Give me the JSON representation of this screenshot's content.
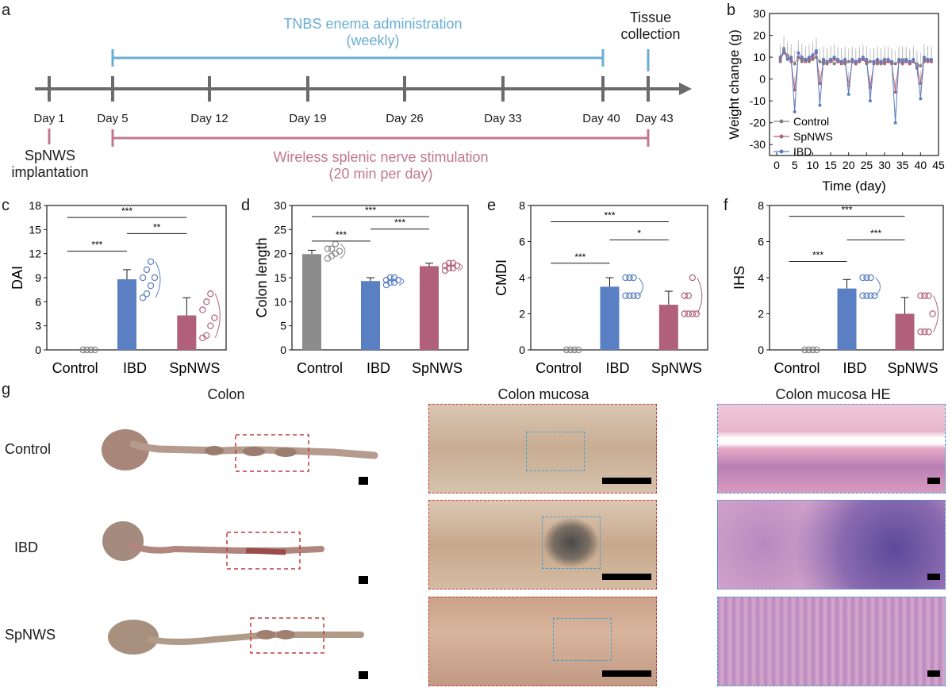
{
  "panel_letters": {
    "a": "a",
    "b": "b",
    "c": "c",
    "d": "d",
    "e": "e",
    "f": "f",
    "g": "g"
  },
  "timeline": {
    "days": [
      "Day 1",
      "Day 5",
      "Day 12",
      "Day 19",
      "Day 26",
      "Day 33",
      "Day 40",
      "Day 43"
    ],
    "tnbs_line1": "TNBS enema administration",
    "tnbs_line2": "(weekly)",
    "tissue_line1": "Tissue",
    "tissue_line2": "collection",
    "spnws_line1": "SpNWS",
    "spnws_line2": "implantation",
    "stim_line1": "Wireless splenic nerve stimulation",
    "stim_line2": "(20 min per day)",
    "colors": {
      "blue": "#6aaed3",
      "pink": "#c0788e",
      "axis": "#6b6b6b"
    }
  },
  "chart_data": [
    {
      "id": "b",
      "type": "line",
      "xlabel": "Time (day)",
      "ylabel": "Weight change (g)",
      "xlim": [
        -2,
        45
      ],
      "ylim": [
        -35,
        30
      ],
      "xticks": [
        0,
        5,
        10,
        15,
        20,
        25,
        30,
        35,
        40,
        45
      ],
      "yticks": [
        -30,
        -20,
        -10,
        0,
        10,
        20,
        30
      ],
      "legend_position": "bottom-left",
      "series": [
        {
          "name": "Control",
          "color": "#7f7f7f",
          "x": [
            1,
            2,
            3,
            4,
            5,
            6,
            7,
            8,
            9,
            10,
            11,
            12,
            13,
            14,
            15,
            16,
            17,
            18,
            19,
            20,
            21,
            22,
            23,
            24,
            25,
            26,
            27,
            28,
            29,
            30,
            31,
            32,
            33,
            34,
            35,
            36,
            37,
            38,
            39,
            40,
            41,
            42,
            43
          ],
          "y": [
            8,
            14,
            10,
            9,
            7,
            10,
            8,
            9,
            8,
            9,
            10,
            8,
            7,
            8,
            9,
            7,
            8,
            8,
            7,
            8,
            8,
            7,
            8,
            9,
            7,
            8,
            8,
            7,
            8,
            7,
            8,
            8,
            7,
            8,
            9,
            8,
            7,
            8,
            7,
            6,
            8,
            9,
            8
          ]
        },
        {
          "name": "SpNWS",
          "color": "#b0607a",
          "x": [
            1,
            2,
            3,
            4,
            5,
            6,
            7,
            8,
            9,
            10,
            11,
            12,
            13,
            14,
            15,
            16,
            17,
            18,
            19,
            20,
            21,
            22,
            23,
            24,
            25,
            26,
            27,
            28,
            29,
            30,
            31,
            32,
            33,
            34,
            35,
            36,
            37,
            38,
            39,
            40,
            41,
            42,
            43
          ],
          "y": [
            9,
            12,
            11,
            8,
            -5,
            10,
            9,
            8,
            9,
            10,
            12,
            -2,
            8,
            7,
            8,
            9,
            8,
            7,
            8,
            -3,
            8,
            7,
            8,
            9,
            8,
            -4,
            7,
            8,
            7,
            8,
            8,
            7,
            -6,
            8,
            7,
            8,
            7,
            8,
            6,
            -2,
            9,
            8,
            8
          ]
        },
        {
          "name": "IBD",
          "color": "#5a7fc2",
          "x": [
            1,
            2,
            3,
            4,
            5,
            6,
            7,
            8,
            9,
            10,
            11,
            12,
            13,
            14,
            15,
            16,
            17,
            18,
            19,
            20,
            21,
            22,
            23,
            24,
            25,
            26,
            27,
            28,
            29,
            30,
            31,
            32,
            33,
            34,
            35,
            36,
            37,
            38,
            39,
            40,
            41,
            42,
            43
          ],
          "y": [
            10,
            13,
            9,
            10,
            -15,
            12,
            10,
            9,
            10,
            11,
            13,
            -12,
            9,
            8,
            9,
            10,
            9,
            8,
            9,
            -7,
            9,
            8,
            9,
            10,
            9,
            -10,
            8,
            9,
            8,
            9,
            9,
            8,
            -20,
            9,
            8,
            9,
            8,
            9,
            5,
            -9,
            10,
            9,
            9
          ]
        }
      ]
    },
    {
      "id": "c",
      "type": "bar",
      "ylabel": "DAI",
      "categories": [
        "Control",
        "IBD",
        "SpNWS"
      ],
      "values": [
        0,
        8.8,
        4.3
      ],
      "errors": [
        0,
        1.2,
        2.2
      ],
      "ylim": [
        0,
        18
      ],
      "yticks": [
        0,
        3,
        6,
        9,
        12,
        15,
        18
      ],
      "points": [
        [
          0,
          0,
          0,
          0,
          0,
          0,
          0
        ],
        [
          6.5,
          7,
          8,
          9,
          9,
          10,
          11
        ],
        [
          1.5,
          1.8,
          3,
          4,
          5,
          6,
          7
        ]
      ],
      "sig": [
        {
          "from": 0,
          "to": 1,
          "label": "***",
          "level": 12.3
        },
        {
          "from": 1,
          "to": 2,
          "label": "**",
          "level": 14.5
        },
        {
          "from": 0,
          "to": 2,
          "label": "***",
          "level": 16.5
        }
      ]
    },
    {
      "id": "d",
      "type": "bar",
      "ylabel": "Colon length",
      "categories": [
        "Control",
        "IBD",
        "SpNWS"
      ],
      "values": [
        19.9,
        14.3,
        17.4
      ],
      "errors": [
        0.8,
        0.7,
        0.6
      ],
      "ylim": [
        0,
        30
      ],
      "yticks": [
        0,
        5,
        10,
        15,
        20,
        25,
        30
      ],
      "points": [
        [
          19,
          19.5,
          20,
          20.5,
          21,
          21,
          22
        ],
        [
          13.5,
          14,
          14,
          14.5,
          14.5,
          15,
          15
        ],
        [
          16.5,
          17,
          17,
          17.5,
          17.5,
          18,
          18
        ]
      ],
      "sig": [
        {
          "from": 0,
          "to": 1,
          "label": "***",
          "level": 22.6
        },
        {
          "from": 1,
          "to": 2,
          "label": "***",
          "level": 25.1
        },
        {
          "from": 0,
          "to": 2,
          "label": "***",
          "level": 27.7
        }
      ]
    },
    {
      "id": "e",
      "type": "bar",
      "ylabel": "CMDI",
      "categories": [
        "Control",
        "IBD",
        "SpNWS"
      ],
      "values": [
        0,
        3.5,
        2.5
      ],
      "errors": [
        0,
        0.5,
        0.75
      ],
      "ylim": [
        0,
        8
      ],
      "yticks": [
        0,
        2,
        4,
        6,
        8
      ],
      "points": [
        [
          0,
          0,
          0,
          0,
          0,
          0,
          0
        ],
        [
          3,
          3,
          3,
          3,
          4,
          4,
          4
        ],
        [
          2,
          2,
          2,
          2,
          3,
          3,
          4
        ]
      ],
      "sig": [
        {
          "from": 0,
          "to": 1,
          "label": "***",
          "level": 4.8
        },
        {
          "from": 1,
          "to": 2,
          "label": "*",
          "level": 6.1
        },
        {
          "from": 0,
          "to": 2,
          "label": "***",
          "level": 7.1
        }
      ]
    },
    {
      "id": "f",
      "type": "bar",
      "ylabel": "IHS",
      "categories": [
        "Control",
        "IBD",
        "SpNWS"
      ],
      "values": [
        0,
        3.4,
        2.0
      ],
      "errors": [
        0,
        0.5,
        0.9
      ],
      "ylim": [
        0,
        8
      ],
      "yticks": [
        0,
        2,
        4,
        6,
        8
      ],
      "points": [
        [
          0,
          0,
          0,
          0,
          0,
          0,
          0
        ],
        [
          3,
          3,
          3,
          3,
          4,
          4,
          4
        ],
        [
          1,
          1,
          1,
          2,
          3,
          3,
          3
        ]
      ],
      "sig": [
        {
          "from": 0,
          "to": 1,
          "label": "***",
          "level": 4.9
        },
        {
          "from": 1,
          "to": 2,
          "label": "***",
          "level": 6.1
        },
        {
          "from": 0,
          "to": 2,
          "label": "***",
          "level": 7.4
        }
      ]
    }
  ],
  "bar_colors": [
    "#8c8c8c",
    "#5a7fc2",
    "#b0607a"
  ],
  "gallery": {
    "col_titles": [
      "Colon",
      "Colon mucosa",
      "Colon mucosa HE"
    ],
    "row_labels": [
      "Control",
      "IBD",
      "SpNWS"
    ]
  }
}
